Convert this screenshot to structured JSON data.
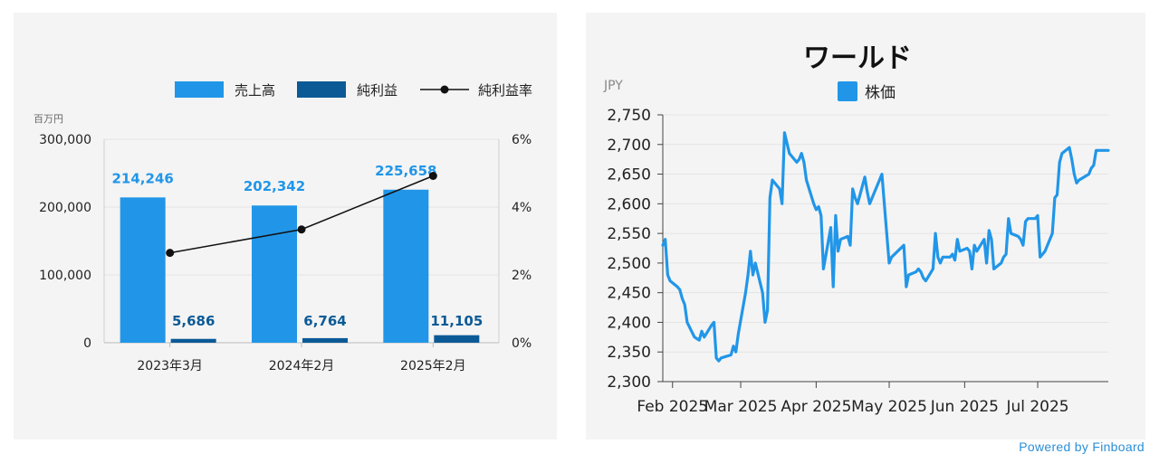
{
  "colors": {
    "revenue": "#2196e8",
    "net_income": "#0b5a96",
    "margin_line": "#111111",
    "price_line": "#2196e8",
    "grid": "#e3e3e3",
    "text": "#222222",
    "muted": "#666666",
    "brand": "#2b8fd6"
  },
  "footer": {
    "powered_by": "Powered by Finboard"
  },
  "chart_data": [
    {
      "type": "bar",
      "categories": [
        "2023年3月",
        "2024年2月",
        "2025年2月"
      ],
      "series": [
        {
          "name": "売上高",
          "kind": "bar",
          "axis": "left",
          "values": [
            214246,
            202342,
            225658
          ],
          "labels": [
            "214,246",
            "202,342",
            "225,658"
          ]
        },
        {
          "name": "純利益",
          "kind": "bar",
          "axis": "left",
          "values": [
            5686,
            6764,
            11105
          ],
          "labels": [
            "5,686",
            "6,764",
            "11,105"
          ]
        },
        {
          "name": "純利益率",
          "kind": "line",
          "axis": "right",
          "values": [
            2.65,
            3.34,
            4.92
          ]
        }
      ],
      "yunit": "百万円",
      "ylim": [
        0,
        300000
      ],
      "yticks": [
        "300,000",
        "200,000",
        "100,000",
        "0"
      ],
      "ylim_right": [
        0,
        6
      ],
      "yticks_right": [
        "6%",
        "4%",
        "2%",
        "0%"
      ],
      "legend": "top-right",
      "grid": true
    },
    {
      "type": "line",
      "title": "ワールド",
      "ylabel": "JPY",
      "series": [
        {
          "name": "株価",
          "x": [
            "2025-01-28",
            "2025-01-29",
            "2025-01-30",
            "2025-01-31",
            "2025-02-03",
            "2025-02-04",
            "2025-02-05",
            "2025-02-06",
            "2025-02-07",
            "2025-02-10",
            "2025-02-12",
            "2025-02-13",
            "2025-02-14",
            "2025-02-17",
            "2025-02-18",
            "2025-02-19",
            "2025-02-20",
            "2025-02-21",
            "2025-02-25",
            "2025-02-26",
            "2025-02-27",
            "2025-02-28",
            "2025-03-03",
            "2025-03-04",
            "2025-03-05",
            "2025-03-06",
            "2025-03-07",
            "2025-03-10",
            "2025-03-11",
            "2025-03-12",
            "2025-03-13",
            "2025-03-14",
            "2025-03-17",
            "2025-03-18",
            "2025-03-19",
            "2025-03-21",
            "2025-03-24",
            "2025-03-25",
            "2025-03-26",
            "2025-03-27",
            "2025-03-28",
            "2025-03-31",
            "2025-04-01",
            "2025-04-02",
            "2025-04-03",
            "2025-04-04",
            "2025-04-07",
            "2025-04-08",
            "2025-04-09",
            "2025-04-10",
            "2025-04-11",
            "2025-04-14",
            "2025-04-15",
            "2025-04-16",
            "2025-04-17",
            "2025-04-18",
            "2025-04-21",
            "2025-04-22",
            "2025-04-23",
            "2025-04-24",
            "2025-04-25",
            "2025-04-28",
            "2025-04-30",
            "2025-05-01",
            "2025-05-02",
            "2025-05-07",
            "2025-05-08",
            "2025-05-09",
            "2025-05-12",
            "2025-05-13",
            "2025-05-14",
            "2025-05-15",
            "2025-05-16",
            "2025-05-19",
            "2025-05-20",
            "2025-05-21",
            "2025-05-22",
            "2025-05-23",
            "2025-05-26",
            "2025-05-27",
            "2025-05-28",
            "2025-05-29",
            "2025-05-30",
            "2025-06-02",
            "2025-06-03",
            "2025-06-04",
            "2025-06-05",
            "2025-06-06",
            "2025-06-09",
            "2025-06-10",
            "2025-06-11",
            "2025-06-12",
            "2025-06-13",
            "2025-06-16",
            "2025-06-17",
            "2025-06-18",
            "2025-06-19",
            "2025-06-20",
            "2025-06-23",
            "2025-06-24",
            "2025-06-25",
            "2025-06-26",
            "2025-06-27",
            "2025-06-30",
            "2025-07-01",
            "2025-07-02",
            "2025-07-03",
            "2025-07-04",
            "2025-07-07",
            "2025-07-08",
            "2025-07-09",
            "2025-07-10",
            "2025-07-11",
            "2025-07-14",
            "2025-07-15",
            "2025-07-16",
            "2025-07-17",
            "2025-07-18",
            "2025-07-22",
            "2025-07-23",
            "2025-07-24",
            "2025-07-25",
            "2025-07-28",
            "2025-07-29",
            "2025-07-30"
          ],
          "values": [
            2530,
            2540,
            2480,
            2470,
            2460,
            2455,
            2440,
            2430,
            2400,
            2375,
            2370,
            2385,
            2375,
            2395,
            2400,
            2340,
            2335,
            2340,
            2345,
            2360,
            2350,
            2380,
            2450,
            2480,
            2520,
            2480,
            2500,
            2450,
            2400,
            2420,
            2610,
            2640,
            2625,
            2600,
            2720,
            2685,
            2670,
            2675,
            2685,
            2670,
            2640,
            2600,
            2590,
            2595,
            2580,
            2490,
            2560,
            2460,
            2580,
            2520,
            2540,
            2545,
            2530,
            2625,
            2610,
            2600,
            2645,
            2620,
            2600,
            2610,
            2620,
            2650,
            2550,
            2500,
            2510,
            2530,
            2460,
            2480,
            2485,
            2490,
            2485,
            2475,
            2470,
            2490,
            2550,
            2510,
            2500,
            2510,
            2510,
            2515,
            2505,
            2540,
            2520,
            2525,
            2520,
            2490,
            2530,
            2520,
            2540,
            2500,
            2555,
            2540,
            2490,
            2500,
            2510,
            2515,
            2575,
            2550,
            2545,
            2540,
            2530,
            2570,
            2575,
            2575,
            2580,
            2510,
            2515,
            2520,
            2550,
            2610,
            2615,
            2670,
            2685,
            2695,
            2675,
            2650,
            2635,
            2640,
            2650,
            2660,
            2665,
            2690,
            2690,
            2690,
            2690
          ]
        }
      ],
      "xticks": [
        "Feb 2025",
        "Mar 2025",
        "Apr 2025",
        "May 2025",
        "Jun 2025",
        "Jul 2025"
      ],
      "ylim": [
        2300,
        2750
      ],
      "yticks": [
        "2,750",
        "2,700",
        "2,650",
        "2,600",
        "2,550",
        "2,500",
        "2,450",
        "2,400",
        "2,350",
        "2,300"
      ],
      "legend": "top-center",
      "grid": true
    }
  ]
}
